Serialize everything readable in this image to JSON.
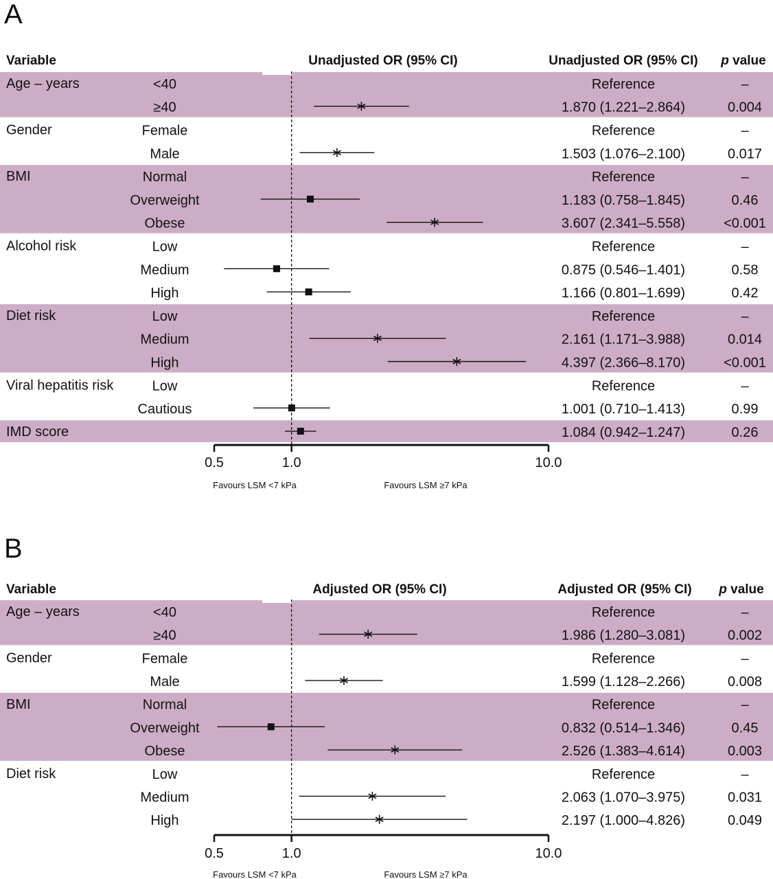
{
  "chart_data": [
    {
      "type": "forest",
      "panel_label": "A",
      "headers": {
        "variable": "Variable",
        "plot": "Unadjusted OR (95% CI)",
        "or_ci": "Unadjusted OR (95% CI)",
        "p": "p",
        "p_suffix": " value"
      },
      "x_scale": "log",
      "reference_line": 1.0,
      "xlim": [
        0.5,
        10.0
      ],
      "ticks": [
        {
          "value": 0.5,
          "label": "0.5"
        },
        {
          "value": 1.0,
          "label": "1.0"
        },
        {
          "value": 10.0,
          "label": "10.0"
        }
      ],
      "favours_left": "Favours LSM <7 kPa",
      "favours_right": "Favours LSM ≥7 kPa",
      "groups": [
        {
          "variable": "Age – years",
          "shaded": true,
          "rows": [
            {
              "level": "<40",
              "or_text": "Reference",
              "p": "–"
            },
            {
              "level": "≥40",
              "or": 1.87,
              "lo": 1.221,
              "hi": 2.864,
              "or_text": "1.870 (1.221–2.864)",
              "p": "0.004",
              "marker": "star"
            }
          ]
        },
        {
          "variable": "Gender",
          "shaded": false,
          "rows": [
            {
              "level": "Female",
              "or_text": "Reference",
              "p": "–"
            },
            {
              "level": "Male",
              "or": 1.503,
              "lo": 1.076,
              "hi": 2.1,
              "or_text": "1.503 (1.076–2.100)",
              "p": "0.017",
              "marker": "star"
            }
          ]
        },
        {
          "variable": "BMI",
          "shaded": true,
          "rows": [
            {
              "level": "Normal",
              "or_text": "Reference",
              "p": "–"
            },
            {
              "level": "Overweight",
              "or": 1.183,
              "lo": 0.758,
              "hi": 1.845,
              "or_text": "1.183 (0.758–1.845)",
              "p": "0.46",
              "marker": "square"
            },
            {
              "level": "Obese",
              "or": 3.607,
              "lo": 2.341,
              "hi": 5.558,
              "or_text": "3.607 (2.341–5.558)",
              "p": "<0.001",
              "marker": "star"
            }
          ]
        },
        {
          "variable": "Alcohol risk",
          "shaded": false,
          "rows": [
            {
              "level": "Low",
              "or_text": "Reference",
              "p": "–"
            },
            {
              "level": "Medium",
              "or": 0.875,
              "lo": 0.546,
              "hi": 1.401,
              "or_text": "0.875 (0.546–1.401)",
              "p": "0.58",
              "marker": "square"
            },
            {
              "level": "High",
              "or": 1.166,
              "lo": 0.801,
              "hi": 1.699,
              "or_text": "1.166 (0.801–1.699)",
              "p": "0.42",
              "marker": "square"
            }
          ]
        },
        {
          "variable": "Diet risk",
          "shaded": true,
          "rows": [
            {
              "level": "Low",
              "or_text": "Reference",
              "p": "–"
            },
            {
              "level": "Medium",
              "or": 2.161,
              "lo": 1.171,
              "hi": 3.988,
              "or_text": "2.161 (1.171–3.988)",
              "p": "0.014",
              "marker": "star"
            },
            {
              "level": "High",
              "or": 4.397,
              "lo": 2.366,
              "hi": 8.17,
              "or_text": "4.397 (2.366–8.170)",
              "p": "<0.001",
              "marker": "star"
            }
          ]
        },
        {
          "variable": "Viral hepatitis risk",
          "shaded": false,
          "rows": [
            {
              "level": "Low",
              "or_text": "Reference",
              "p": "–"
            },
            {
              "level": "Cautious",
              "or": 1.001,
              "lo": 0.71,
              "hi": 1.413,
              "or_text": "1.001 (0.710–1.413)",
              "p": "0.99",
              "marker": "square"
            }
          ]
        },
        {
          "variable": "IMD score",
          "shaded": true,
          "rows": [
            {
              "level": "",
              "or": 1.084,
              "lo": 0.942,
              "hi": 1.247,
              "or_text": "1.084 (0.942–1.247)",
              "p": "0.26",
              "marker": "square"
            }
          ]
        }
      ]
    },
    {
      "type": "forest",
      "panel_label": "B",
      "headers": {
        "variable": "Variable",
        "plot": "Adjusted OR (95% CI)",
        "or_ci": "Adjusted OR (95% CI)",
        "p": "p",
        "p_suffix": " value"
      },
      "x_scale": "log",
      "reference_line": 1.0,
      "xlim": [
        0.5,
        10.0
      ],
      "ticks": [
        {
          "value": 0.5,
          "label": "0.5"
        },
        {
          "value": 1.0,
          "label": "1.0"
        },
        {
          "value": 10.0,
          "label": "10.0"
        }
      ],
      "favours_left": "Favours LSM <7 kPa",
      "favours_right": "Favours LSM ≥7 kPa",
      "groups": [
        {
          "variable": "Age – years",
          "shaded": true,
          "rows": [
            {
              "level": "<40",
              "or_text": "Reference",
              "p": "–"
            },
            {
              "level": "≥40",
              "or": 1.986,
              "lo": 1.28,
              "hi": 3.081,
              "or_text": "1.986 (1.280–3.081)",
              "p": "0.002",
              "marker": "star"
            }
          ]
        },
        {
          "variable": "Gender",
          "shaded": false,
          "rows": [
            {
              "level": "Female",
              "or_text": "Reference",
              "p": "–"
            },
            {
              "level": "Male",
              "or": 1.599,
              "lo": 1.128,
              "hi": 2.266,
              "or_text": "1.599 (1.128–2.266)",
              "p": "0.008",
              "marker": "star"
            }
          ]
        },
        {
          "variable": "BMI",
          "shaded": true,
          "rows": [
            {
              "level": "Normal",
              "or_text": "Reference",
              "p": "–"
            },
            {
              "level": "Overweight",
              "or": 0.832,
              "lo": 0.514,
              "hi": 1.346,
              "or_text": "0.832 (0.514–1.346)",
              "p": "0.45",
              "marker": "square"
            },
            {
              "level": "Obese",
              "or": 2.526,
              "lo": 1.383,
              "hi": 4.614,
              "or_text": "2.526 (1.383–4.614)",
              "p": "0.003",
              "marker": "star"
            }
          ]
        },
        {
          "variable": "Diet risk",
          "shaded": false,
          "rows": [
            {
              "level": "Low",
              "or_text": "Reference",
              "p": "–"
            },
            {
              "level": "Medium",
              "or": 2.063,
              "lo": 1.07,
              "hi": 3.975,
              "or_text": "2.063 (1.070–3.975)",
              "p": "0.031",
              "marker": "star"
            },
            {
              "level": "High",
              "or": 2.197,
              "lo": 1.0,
              "hi": 4.826,
              "or_text": "2.197 (1.000–4.826)",
              "p": "0.049",
              "marker": "star"
            }
          ]
        }
      ]
    }
  ],
  "colors": {
    "band": "#cdadc6",
    "ink": "#111111"
  }
}
